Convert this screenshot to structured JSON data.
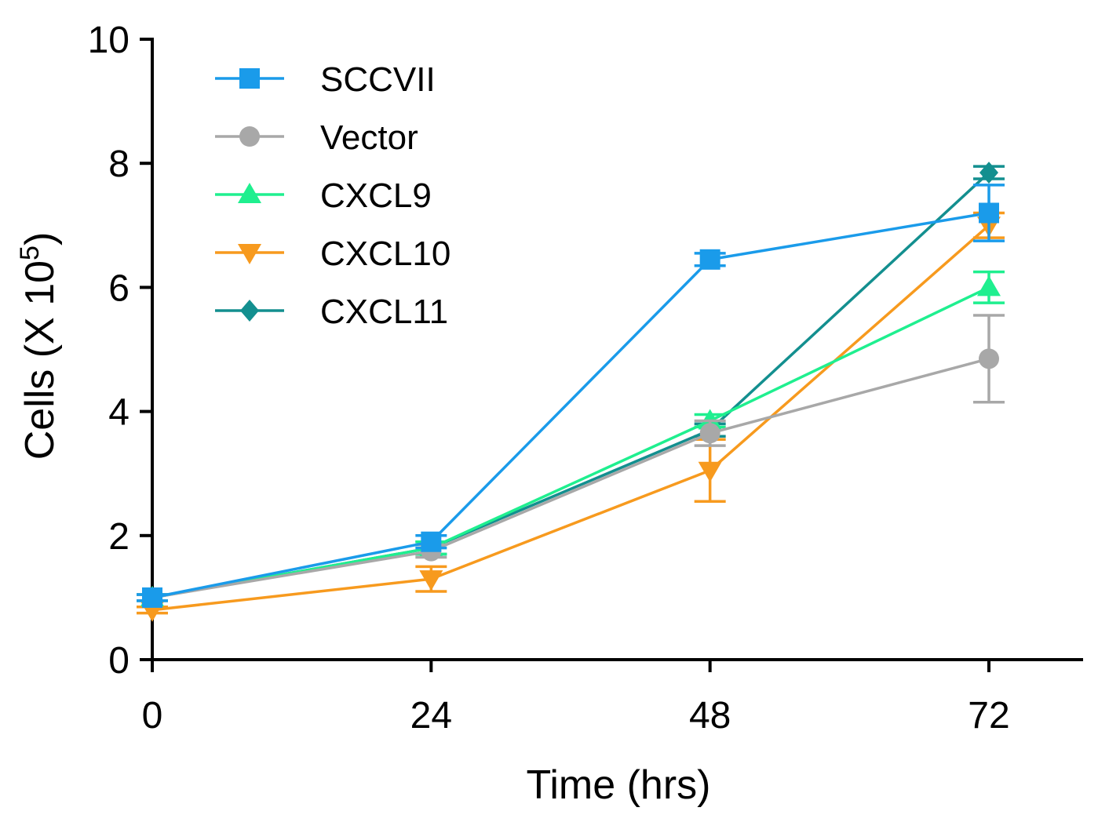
{
  "chart_data": {
    "type": "line",
    "title": "",
    "xlabel": "Time (hrs)",
    "ylabel_prefix": "Cells (X 10",
    "ylabel_exponent": "5",
    "ylabel_suffix": ")",
    "x": [
      0,
      24,
      48,
      72
    ],
    "x_tick_labels": [
      "0",
      "24",
      "48",
      "72"
    ],
    "xlim": [
      0,
      80
    ],
    "ylim": [
      0,
      10
    ],
    "y_ticks": [
      0,
      2,
      4,
      6,
      8,
      10
    ],
    "y_tick_labels": [
      "0",
      "2",
      "4",
      "6",
      "8",
      "10"
    ],
    "grid": false,
    "legend_position": "top-left",
    "series": [
      {
        "name": "SCCVII",
        "color": "#1a9bea",
        "marker": "square",
        "values": [
          1.0,
          1.9,
          6.45,
          7.2
        ],
        "err": [
          0.05,
          0.1,
          0.1,
          0.45
        ]
      },
      {
        "name": "Vector",
        "color": "#a8a8a8",
        "marker": "circle",
        "values": [
          1.0,
          1.75,
          3.65,
          4.85
        ],
        "err": [
          0.05,
          0.1,
          0.2,
          0.7
        ]
      },
      {
        "name": "CXCL9",
        "color": "#1fef8f",
        "marker": "triangle-up",
        "values": [
          1.0,
          1.8,
          3.85,
          6.0
        ],
        "err": [
          0.05,
          0.1,
          0.1,
          0.25
        ]
      },
      {
        "name": "CXCL10",
        "color": "#f79a1e",
        "marker": "triangle-down",
        "values": [
          0.8,
          1.3,
          3.05,
          7.0
        ],
        "err": [
          0.05,
          0.2,
          0.5,
          0.2
        ]
      },
      {
        "name": "CXCL11",
        "color": "#138f8f",
        "marker": "diamond",
        "values": [
          1.0,
          1.8,
          3.7,
          7.85
        ],
        "err": [
          0.05,
          0.1,
          0.1,
          0.1
        ]
      }
    ]
  }
}
